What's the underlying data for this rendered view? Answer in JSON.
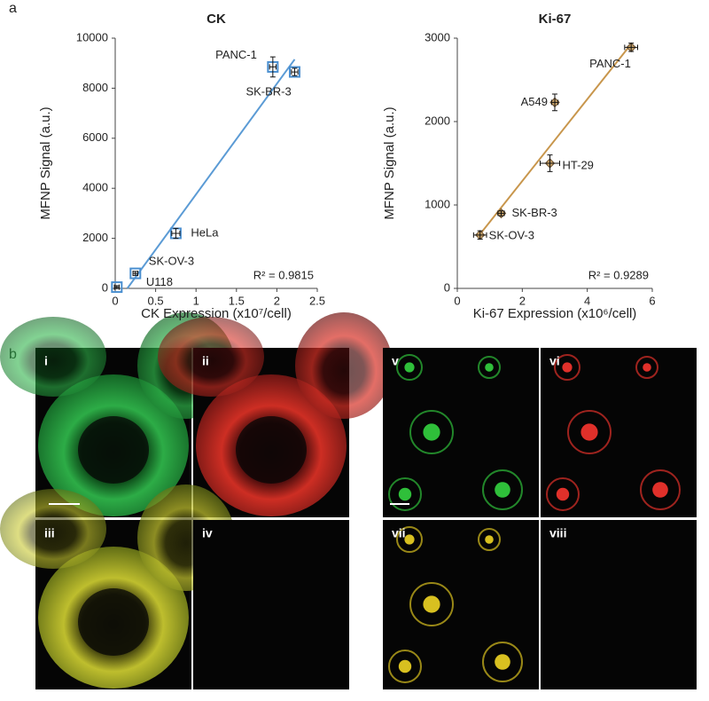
{
  "panel_labels": [
    "a",
    "b"
  ],
  "image_labels": [
    "i",
    "ii",
    "iii",
    "iv",
    "v",
    "vi",
    "vii",
    "viii"
  ],
  "chart_data": [
    {
      "type": "scatter",
      "title": "CK",
      "x_label": "CK Expression (x10⁷/cell)",
      "y_label": "MFNP Signal (a.u.)",
      "point_labels": [
        "U118",
        "SK-OV-3",
        "HeLa",
        "PANC-1",
        "SK-BR-3"
      ],
      "x": [
        0.02,
        0.25,
        0.75,
        1.95,
        2.22
      ],
      "values": [
        50,
        600,
        2200,
        8850,
        8650
      ],
      "x_errors": [
        0.03,
        0.03,
        0.05,
        0.04,
        0.04
      ],
      "y_errors": [
        60,
        80,
        200,
        400,
        150
      ],
      "trendline": {
        "x": [
          0.15,
          2.22
        ],
        "y": [
          0,
          9150
        ]
      },
      "annotation": "R² = 0.9815",
      "color": "#4a8fd0",
      "line_color": "#5b9bd5",
      "marker": "square",
      "xlim": [
        0,
        2.5
      ],
      "xticks": [
        0,
        0.5,
        1,
        1.5,
        2,
        2.5
      ],
      "ylim": [
        0,
        10000
      ],
      "yticks": [
        0,
        2000,
        4000,
        6000,
        8000,
        10000
      ],
      "grid": false
    },
    {
      "type": "scatter",
      "title": "Ki-67",
      "x_label": "Ki-67 Expression (x10⁶/cell)",
      "y_label": "MFNP Signal (a.u.)",
      "point_labels": [
        "SK-OV-3",
        "SK-BR-3",
        "HT-29",
        "A549",
        "PANC-1"
      ],
      "x": [
        0.7,
        1.35,
        2.85,
        3.0,
        5.35
      ],
      "values": [
        640,
        900,
        1500,
        2230,
        2890
      ],
      "x_errors": [
        0.2,
        0.1,
        0.3,
        0.1,
        0.2
      ],
      "y_errors": [
        50,
        30,
        100,
        100,
        50
      ],
      "trendline": {
        "x": [
          0.7,
          5.35
        ],
        "y": [
          650,
          2930
        ]
      },
      "annotation": "R² = 0.9289",
      "color": "#c9a46a",
      "line_color": "#c8964c",
      "marker": "diamond",
      "xlim": [
        0,
        6
      ],
      "xticks": [
        0,
        2,
        4,
        6
      ],
      "ylim": [
        0,
        3000
      ],
      "yticks": [
        0,
        1000,
        2000,
        3000
      ],
      "grid": false
    }
  ]
}
